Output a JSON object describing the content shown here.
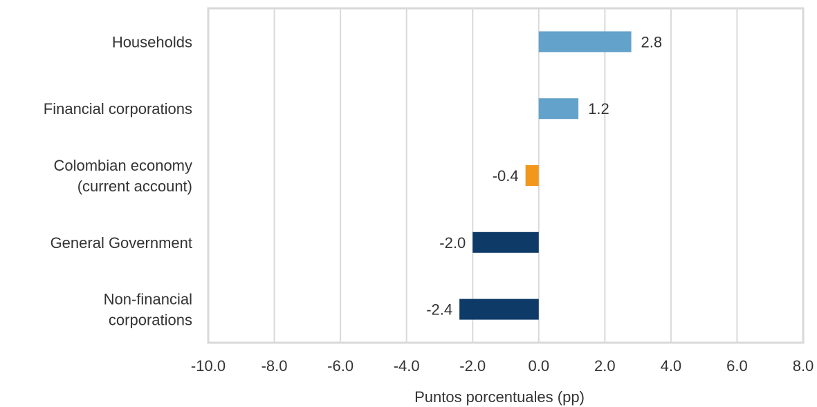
{
  "chart_data": {
    "type": "bar",
    "orientation": "horizontal",
    "categories": [
      [
        "Households"
      ],
      [
        "Financial corporations"
      ],
      [
        "Colombian economy",
        "(current account)"
      ],
      [
        "General Government"
      ],
      [
        "Non-financial",
        "corporations"
      ]
    ],
    "values": [
      2.8,
      1.2,
      -0.4,
      -2.0,
      -2.4
    ],
    "data_labels": [
      "2.8",
      "1.2",
      "-0.4",
      "-2.0",
      "-2.4"
    ],
    "bar_colors": [
      "#63A2CA",
      "#63A2CA",
      "#F2961C",
      "#0E3A67",
      "#0E3A67"
    ],
    "xlabel": "Puntos porcentuales (pp)",
    "ylabel": "",
    "xlim": [
      -10,
      8
    ],
    "xticks": [
      -10,
      -8,
      -6,
      -4,
      -2,
      0,
      2,
      4,
      6,
      8
    ],
    "xtick_labels": [
      "-10.0",
      "-8.0",
      "-6.0",
      "-4.0",
      "-2.0",
      "0.0",
      "2.0",
      "4.0",
      "6.0",
      "8.0"
    ],
    "grid": "vertical",
    "legend": "none",
    "frame_color": "#D9D9D9"
  }
}
